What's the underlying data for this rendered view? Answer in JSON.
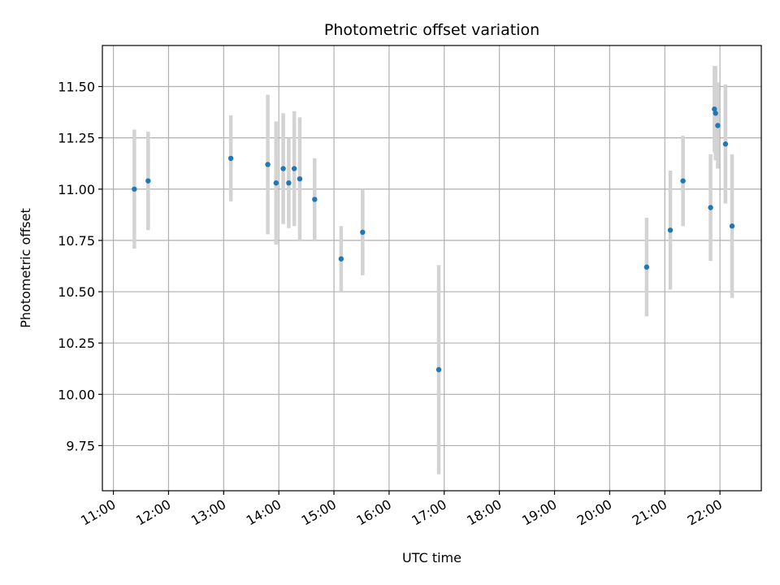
{
  "chart_data": {
    "type": "scatter",
    "title": "Photometric offset variation",
    "xlabel": "UTC time",
    "ylabel": "Photometric offset",
    "x_unit": "hours UTC",
    "xlim": [
      10.8,
      22.75
    ],
    "ylim": [
      9.53,
      11.7
    ],
    "grid": true,
    "legend": "none",
    "x_ticks": [
      11,
      12,
      13,
      14,
      15,
      16,
      17,
      18,
      19,
      20,
      21,
      22
    ],
    "x_tick_labels": [
      "11:00",
      "12:00",
      "13:00",
      "14:00",
      "15:00",
      "16:00",
      "17:00",
      "18:00",
      "19:00",
      "20:00",
      "21:00",
      "22:00"
    ],
    "y_ticks": [
      9.75,
      10.0,
      10.25,
      10.5,
      10.75,
      11.0,
      11.25,
      11.5
    ],
    "y_tick_labels": [
      "9.75",
      "10.00",
      "10.25",
      "10.50",
      "10.75",
      "11.00",
      "11.25",
      "11.50"
    ],
    "point_color": "#1f77b4",
    "errorbar_color": "#d3d3d3",
    "points": [
      {
        "x": 11.38,
        "y": 11.0,
        "yerr": 0.29
      },
      {
        "x": 11.63,
        "y": 11.04,
        "yerr": 0.24
      },
      {
        "x": 13.13,
        "y": 11.15,
        "yerr": 0.21
      },
      {
        "x": 13.8,
        "y": 11.12,
        "yerr": 0.34
      },
      {
        "x": 13.95,
        "y": 11.03,
        "yerr": 0.3
      },
      {
        "x": 14.08,
        "y": 11.1,
        "yerr": 0.27
      },
      {
        "x": 14.18,
        "y": 11.03,
        "yerr": 0.22
      },
      {
        "x": 14.28,
        "y": 11.1,
        "yerr": 0.28
      },
      {
        "x": 14.38,
        "y": 11.05,
        "yerr": 0.3
      },
      {
        "x": 14.65,
        "y": 10.95,
        "yerr": 0.2
      },
      {
        "x": 15.13,
        "y": 10.66,
        "yerr": 0.16
      },
      {
        "x": 15.52,
        "y": 10.79,
        "yerr": 0.21
      },
      {
        "x": 16.9,
        "y": 10.12,
        "yerr": 0.51
      },
      {
        "x": 20.67,
        "y": 10.62,
        "yerr": 0.24
      },
      {
        "x": 21.1,
        "y": 10.8,
        "yerr": 0.29
      },
      {
        "x": 21.33,
        "y": 11.04,
        "yerr": 0.22
      },
      {
        "x": 21.83,
        "y": 10.91,
        "yerr": 0.26
      },
      {
        "x": 21.9,
        "y": 11.39,
        "yerr": 0.21
      },
      {
        "x": 21.92,
        "y": 11.37,
        "yerr": 0.23
      },
      {
        "x": 21.96,
        "y": 11.31,
        "yerr": 0.21
      },
      {
        "x": 22.1,
        "y": 11.22,
        "yerr": 0.29
      },
      {
        "x": 22.22,
        "y": 10.82,
        "yerr": 0.35
      }
    ]
  }
}
